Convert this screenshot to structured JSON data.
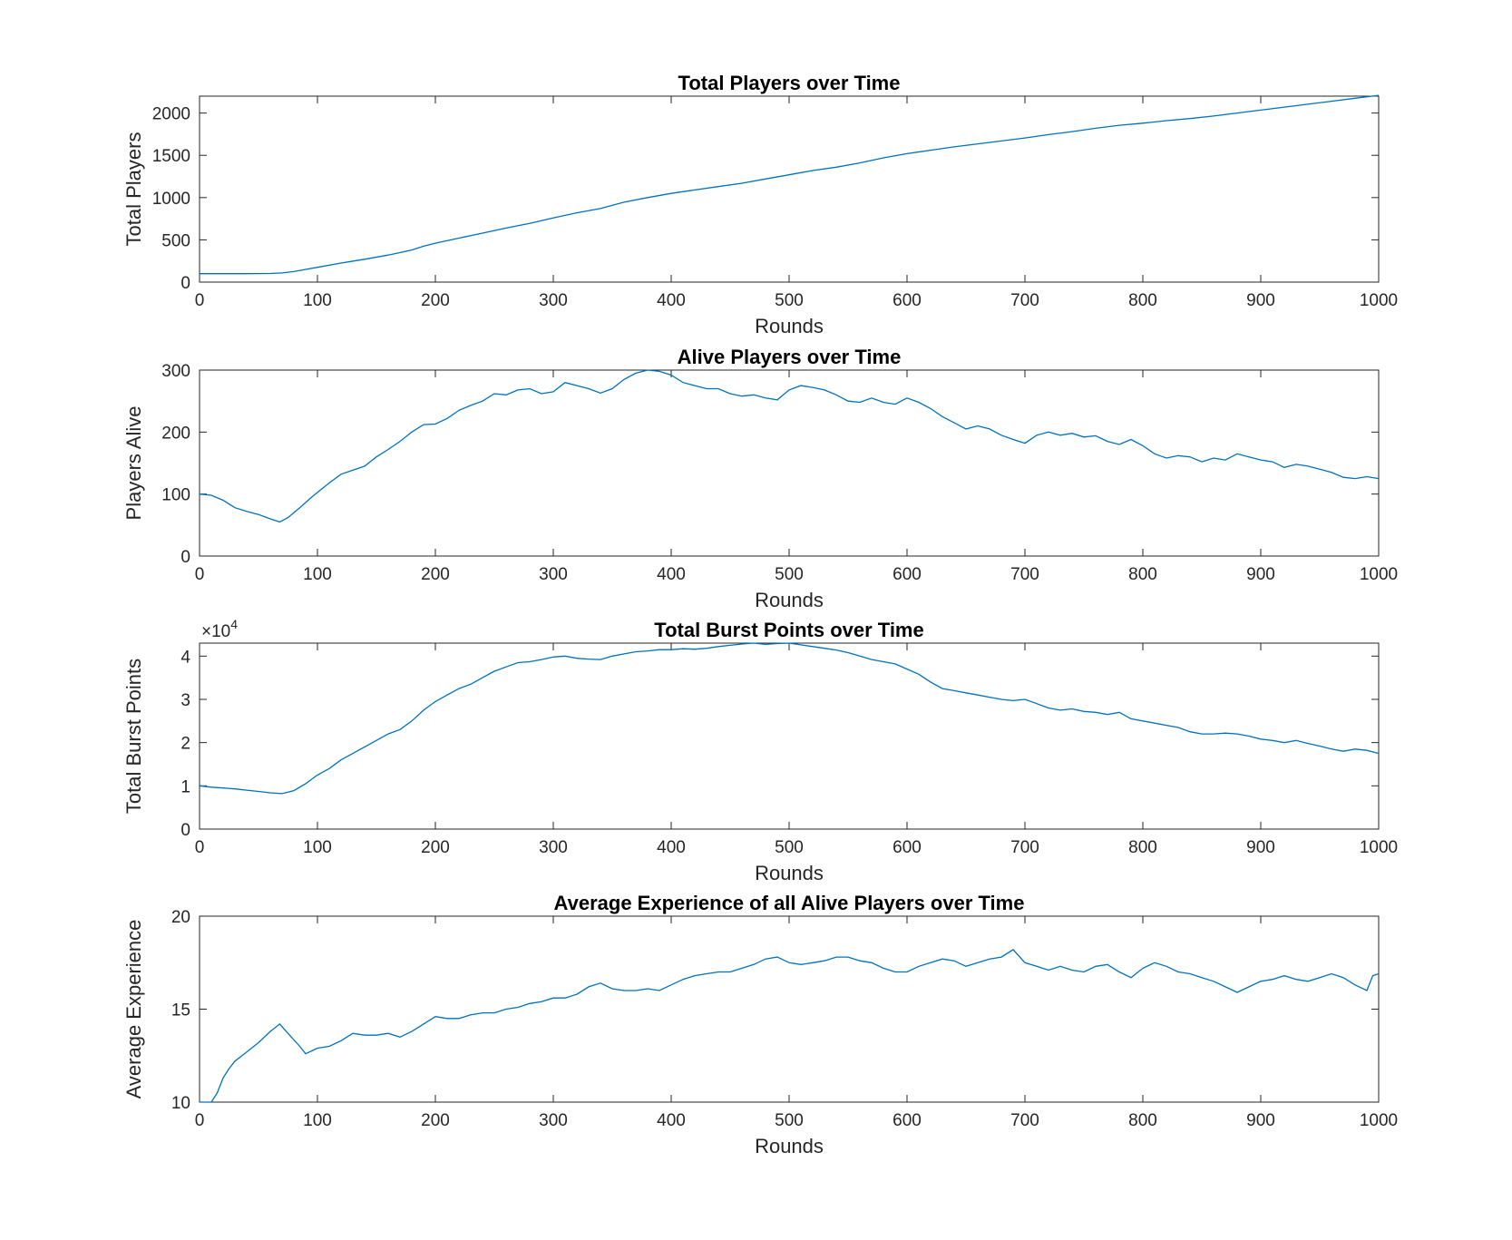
{
  "figure": {
    "series_color": "#0072BD",
    "axis_color": "#262626"
  },
  "chart_data": [
    {
      "type": "line",
      "title": "Total Players over Time",
      "xlabel": "Rounds",
      "ylabel": "Total Players",
      "xlim": [
        0,
        1000
      ],
      "ylim": [
        0,
        2200
      ],
      "xticks": [
        0,
        100,
        200,
        300,
        400,
        500,
        600,
        700,
        800,
        900,
        1000
      ],
      "yticks": [
        0,
        500,
        1000,
        1500,
        2000
      ],
      "exponent_label": "",
      "grid": false,
      "legend": "none",
      "series": [
        {
          "x": [
            0,
            20,
            40,
            60,
            70,
            80,
            90,
            100,
            120,
            140,
            160,
            180,
            190,
            200,
            220,
            240,
            260,
            280,
            300,
            320,
            340,
            360,
            380,
            400,
            420,
            440,
            460,
            480,
            500,
            520,
            540,
            560,
            580,
            600,
            620,
            640,
            660,
            680,
            700,
            720,
            740,
            760,
            780,
            800,
            820,
            840,
            860,
            880,
            900,
            920,
            940,
            960,
            980,
            1000
          ],
          "y": [
            100,
            100,
            100,
            102,
            108,
            125,
            150,
            175,
            225,
            270,
            320,
            380,
            425,
            460,
            520,
            580,
            640,
            695,
            760,
            820,
            870,
            945,
            1000,
            1050,
            1090,
            1130,
            1170,
            1220,
            1270,
            1320,
            1360,
            1410,
            1470,
            1520,
            1560,
            1600,
            1635,
            1670,
            1705,
            1745,
            1780,
            1820,
            1855,
            1880,
            1910,
            1935,
            1965,
            2000,
            2035,
            2070,
            2105,
            2140,
            2175,
            2210
          ]
        }
      ]
    },
    {
      "type": "line",
      "title": "Alive Players over Time",
      "xlabel": "Rounds",
      "ylabel": "Players Alive",
      "xlim": [
        0,
        1000
      ],
      "ylim": [
        0,
        300
      ],
      "xticks": [
        0,
        100,
        200,
        300,
        400,
        500,
        600,
        700,
        800,
        900,
        1000
      ],
      "yticks": [
        0,
        100,
        200,
        300
      ],
      "exponent_label": "",
      "grid": false,
      "legend": "none",
      "series": [
        {
          "x": [
            0,
            10,
            20,
            30,
            40,
            50,
            60,
            68,
            75,
            85,
            95,
            110,
            120,
            140,
            150,
            160,
            170,
            180,
            190,
            200,
            210,
            220,
            230,
            240,
            250,
            260,
            270,
            280,
            290,
            300,
            310,
            320,
            330,
            340,
            350,
            360,
            370,
            380,
            390,
            400,
            410,
            420,
            430,
            440,
            450,
            460,
            470,
            480,
            490,
            500,
            510,
            520,
            530,
            540,
            550,
            560,
            570,
            580,
            590,
            600,
            610,
            620,
            630,
            640,
            650,
            660,
            670,
            680,
            690,
            700,
            710,
            720,
            730,
            740,
            750,
            760,
            770,
            780,
            790,
            800,
            810,
            820,
            830,
            840,
            850,
            860,
            870,
            880,
            890,
            900,
            910,
            920,
            930,
            940,
            950,
            960,
            970,
            980,
            990,
            1000
          ],
          "y": [
            100,
            98,
            90,
            78,
            72,
            67,
            60,
            55,
            62,
            78,
            95,
            118,
            132,
            145,
            160,
            172,
            185,
            200,
            212,
            213,
            222,
            235,
            243,
            250,
            262,
            260,
            268,
            270,
            262,
            265,
            280,
            275,
            270,
            263,
            270,
            285,
            295,
            300,
            298,
            292,
            280,
            275,
            270,
            270,
            262,
            258,
            260,
            255,
            252,
            268,
            275,
            272,
            268,
            260,
            250,
            248,
            255,
            248,
            245,
            255,
            248,
            238,
            225,
            215,
            205,
            210,
            205,
            195,
            188,
            182,
            195,
            200,
            195,
            198,
            192,
            194,
            185,
            180,
            188,
            178,
            165,
            158,
            162,
            160,
            152,
            158,
            155,
            165,
            160,
            155,
            152,
            143,
            148,
            145,
            140,
            135,
            127,
            125,
            128,
            125
          ]
        }
      ]
    },
    {
      "type": "line",
      "title": "Total Burst Points over Time",
      "xlabel": "Rounds",
      "ylabel": "Total Burst Points",
      "xlim": [
        0,
        1000
      ],
      "ylim": [
        0,
        43000
      ],
      "xticks": [
        0,
        100,
        200,
        300,
        400,
        500,
        600,
        700,
        800,
        900,
        1000
      ],
      "yticks": [
        0,
        10000,
        20000,
        30000,
        40000
      ],
      "ytick_labels": [
        "0",
        "1",
        "2",
        "3",
        "4"
      ],
      "exponent_label": "×10",
      "exponent_power": "4",
      "grid": false,
      "legend": "none",
      "series": [
        {
          "x": [
            0,
            10,
            20,
            30,
            40,
            50,
            60,
            70,
            80,
            90,
            100,
            110,
            120,
            130,
            140,
            150,
            160,
            170,
            180,
            190,
            200,
            210,
            220,
            230,
            240,
            250,
            260,
            270,
            280,
            290,
            300,
            310,
            320,
            330,
            340,
            350,
            360,
            370,
            380,
            390,
            400,
            410,
            420,
            430,
            440,
            450,
            460,
            470,
            480,
            490,
            500,
            510,
            520,
            530,
            540,
            550,
            560,
            570,
            580,
            590,
            600,
            610,
            620,
            630,
            640,
            650,
            660,
            670,
            680,
            690,
            700,
            710,
            720,
            730,
            740,
            750,
            760,
            770,
            780,
            790,
            800,
            810,
            820,
            830,
            840,
            850,
            860,
            870,
            880,
            890,
            900,
            910,
            920,
            930,
            940,
            950,
            960,
            970,
            980,
            990,
            1000
          ],
          "y": [
            10000,
            9700,
            9500,
            9300,
            9000,
            8700,
            8400,
            8200,
            8900,
            10500,
            12500,
            14000,
            16000,
            17500,
            19000,
            20500,
            22000,
            23000,
            25000,
            27500,
            29500,
            31000,
            32500,
            33500,
            35000,
            36500,
            37500,
            38500,
            38700,
            39200,
            39800,
            40000,
            39500,
            39300,
            39200,
            40000,
            40500,
            41000,
            41200,
            41500,
            41500,
            41700,
            41600,
            41800,
            42200,
            42500,
            42800,
            43000,
            42700,
            42900,
            43000,
            42600,
            42200,
            41800,
            41400,
            40800,
            40000,
            39200,
            38700,
            38200,
            37000,
            35800,
            34000,
            32500,
            32000,
            31500,
            31000,
            30500,
            30000,
            29700,
            30000,
            29000,
            28000,
            27500,
            27800,
            27200,
            27000,
            26500,
            27000,
            25500,
            25000,
            24500,
            24000,
            23500,
            22500,
            22000,
            22000,
            22200,
            22000,
            21500,
            20800,
            20500,
            20000,
            20500,
            19800,
            19200,
            18500,
            18000,
            18500,
            18200,
            17500
          ]
        }
      ]
    },
    {
      "type": "line",
      "title": "Average Experience of all Alive Players over Time",
      "xlabel": "Rounds",
      "ylabel": "Average Experience",
      "xlim": [
        0,
        1000
      ],
      "ylim": [
        10,
        20
      ],
      "xticks": [
        0,
        100,
        200,
        300,
        400,
        500,
        600,
        700,
        800,
        900,
        1000
      ],
      "yticks": [
        10,
        15,
        20
      ],
      "exponent_label": "",
      "grid": false,
      "legend": "none",
      "series": [
        {
          "x": [
            0,
            10,
            15,
            20,
            25,
            30,
            40,
            50,
            60,
            68,
            75,
            85,
            90,
            100,
            110,
            120,
            130,
            140,
            150,
            160,
            170,
            180,
            190,
            200,
            210,
            220,
            230,
            240,
            250,
            260,
            270,
            280,
            290,
            300,
            310,
            320,
            330,
            340,
            350,
            360,
            370,
            380,
            390,
            400,
            410,
            420,
            430,
            440,
            450,
            460,
            470,
            480,
            490,
            500,
            510,
            520,
            530,
            540,
            550,
            560,
            570,
            580,
            590,
            600,
            610,
            620,
            630,
            640,
            650,
            660,
            670,
            680,
            690,
            700,
            710,
            720,
            730,
            740,
            750,
            760,
            770,
            780,
            790,
            800,
            810,
            820,
            830,
            840,
            850,
            860,
            870,
            880,
            890,
            900,
            910,
            920,
            930,
            940,
            950,
            960,
            970,
            980,
            990,
            995,
            1000
          ],
          "y": [
            10,
            10,
            10.5,
            11.3,
            11.8,
            12.2,
            12.7,
            13.2,
            13.8,
            14.2,
            13.7,
            13,
            12.6,
            12.9,
            13,
            13.3,
            13.7,
            13.6,
            13.6,
            13.7,
            13.5,
            13.8,
            14.2,
            14.6,
            14.5,
            14.5,
            14.7,
            14.8,
            14.8,
            15,
            15.1,
            15.3,
            15.4,
            15.6,
            15.6,
            15.8,
            16.2,
            16.4,
            16.1,
            16,
            16,
            16.1,
            16,
            16.3,
            16.6,
            16.8,
            16.9,
            17,
            17,
            17.2,
            17.4,
            17.7,
            17.8,
            17.5,
            17.4,
            17.5,
            17.6,
            17.8,
            17.8,
            17.6,
            17.5,
            17.2,
            17,
            17,
            17.3,
            17.5,
            17.7,
            17.6,
            17.3,
            17.5,
            17.7,
            17.8,
            18.2,
            17.5,
            17.3,
            17.1,
            17.3,
            17.1,
            17,
            17.3,
            17.4,
            17,
            16.7,
            17.2,
            17.5,
            17.3,
            17,
            16.9,
            16.7,
            16.5,
            16.2,
            15.9,
            16.2,
            16.5,
            16.6,
            16.8,
            16.6,
            16.5,
            16.7,
            16.9,
            16.7,
            16.3,
            16,
            16.8,
            16.9
          ]
        }
      ]
    }
  ]
}
